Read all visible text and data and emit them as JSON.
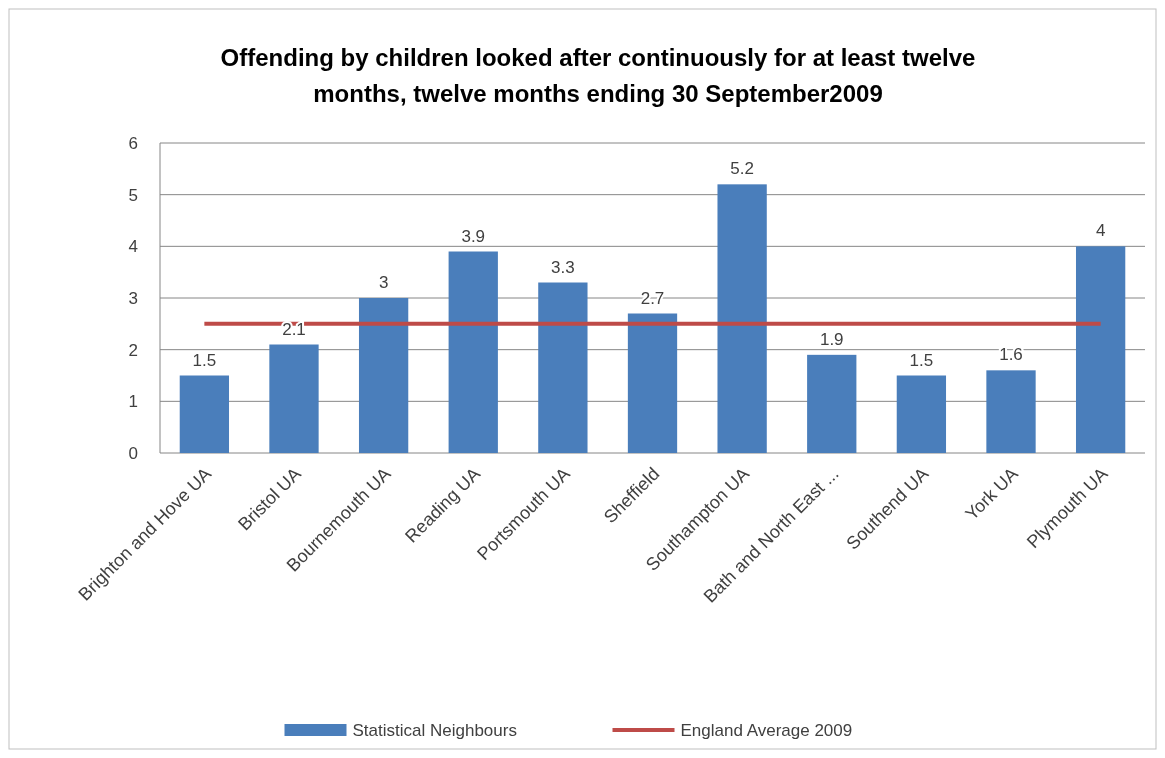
{
  "chart_data": {
    "type": "bar",
    "title": "Offending by children looked after continuously for at least twelve months, twelve months ending 30 September2009",
    "categories": [
      "Brighton and Hove UA",
      "Bristol UA",
      "Bournemouth UA",
      "Reading UA",
      "Portsmouth UA",
      "Sheffield",
      "Southampton UA",
      "Bath and North East ...",
      "Southend UA",
      "York UA",
      "Plymouth UA"
    ],
    "series": [
      {
        "name": "Statistical Neighbours",
        "color": "#4a7ebb",
        "values": [
          1.5,
          2.1,
          3,
          3.9,
          3.3,
          2.7,
          5.2,
          1.9,
          1.5,
          1.6,
          4
        ],
        "value_labels": [
          "1.5",
          "2.1",
          "3",
          "3.9",
          "3.3",
          "2.7",
          "5.2",
          "1.9",
          "1.5",
          "1.6",
          "4"
        ]
      },
      {
        "name": "England Average 2009",
        "type": "line",
        "color": "#be4b48",
        "values": [
          2.5,
          2.5,
          2.5,
          2.5,
          2.5,
          2.5,
          2.5,
          2.5,
          2.5,
          2.5,
          2.5
        ],
        "marker": "none"
      }
    ],
    "ylim": [
      0,
      6
    ],
    "yticks": [
      0,
      1,
      2,
      3,
      4,
      5,
      6
    ],
    "grid": "y",
    "legend": "bottom"
  }
}
